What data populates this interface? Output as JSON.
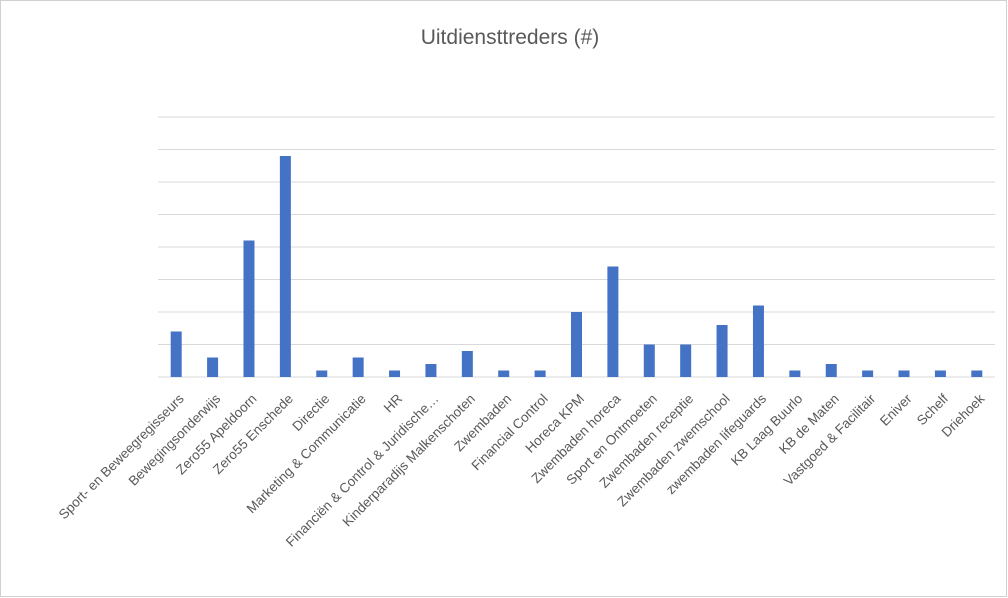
{
  "chart_data": {
    "type": "bar",
    "title": "Uitdiensttreders (#)",
    "categories": [
      "Sport- en Beweegregisseurs",
      "Bewegingsonderwijs",
      "Zero55 Apeldoorn",
      "Zero55 Enschede",
      "Directie",
      "Marketing & Communicatie",
      "HR",
      "Financiën & Control & Juridische…",
      "Kinderparadijs Malkenschoten",
      "Zwembaden",
      "Financial Control",
      "Horeca KPM",
      "Zwembaden horeca",
      "Sport en Ontmoeten",
      "Zwembaden receptie",
      "Zwembaden zwemschool",
      "zwembaden lifeguards",
      "KB Laag Buurlo",
      "KB de Maten",
      "Vastgoed & Facilitair",
      "Eniver",
      "Schelf",
      "Driehoek"
    ],
    "values": [
      7,
      3,
      21,
      34,
      1,
      3,
      1,
      2,
      4,
      1,
      1,
      10,
      17,
      5,
      5,
      8,
      11,
      1,
      2,
      1,
      1,
      1,
      1
    ],
    "color": "#4472c4",
    "ylim": [
      0,
      40
    ],
    "yticks": [
      0,
      5,
      10,
      15,
      20,
      25,
      30,
      35,
      40
    ],
    "grid": true
  }
}
